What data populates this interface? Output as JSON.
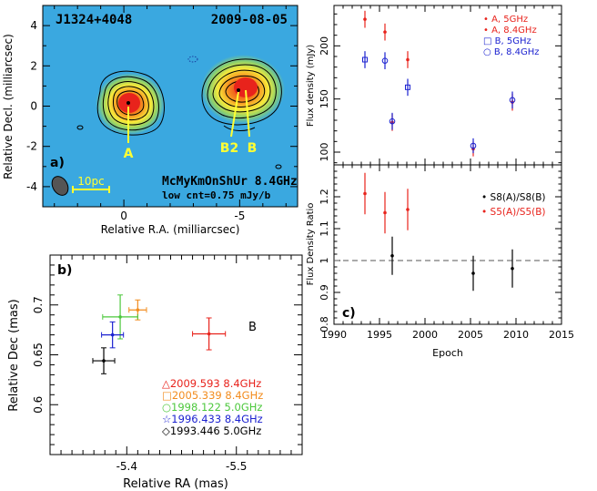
{
  "chart_data": [
    {
      "panel": "a)",
      "type": "heatmap",
      "source": "J1324+4048",
      "date": "2009-08-05",
      "xlabel": "Relative R.A. (milliarcsec)",
      "ylabel": "Relative Decl. (milliarcsec)",
      "xlim": [
        3.5,
        -7.5
      ],
      "ylim": [
        -5,
        5
      ],
      "xticks": [
        0,
        -5
      ],
      "yticks": [
        4,
        2,
        0,
        -2,
        -4
      ],
      "components": [
        {
          "label": "A",
          "x": 0.0,
          "y": 0.0
        },
        {
          "label": "B2",
          "x": -4.6,
          "y": 0.4
        },
        {
          "label": "B",
          "x": -5.4,
          "y": 0.7
        }
      ],
      "scalebar": "10pc",
      "caption": "McMyKmOnShUr 8.4GHz",
      "contour_note": "low cnt=0.75 mJy/b",
      "colors": {
        "background": "#3aa8e0",
        "core": "#e8231c",
        "outer": "#f7e93a"
      }
    },
    {
      "panel": "b)",
      "type": "scatter",
      "xlabel": "Relative RA (mas)",
      "ylabel": "Relative Dec (mas)",
      "xlim": [
        -5.33,
        -5.56
      ],
      "ylim": [
        0.55,
        0.75
      ],
      "xticks": [
        -5.4,
        -5.5
      ],
      "yticks": [
        0.6,
        0.65,
        0.7
      ],
      "component_label": "B",
      "series": [
        {
          "name": "2009.593 8.4GHz",
          "marker": "triangle",
          "color": "#e8231c",
          "x": -5.475,
          "y": 0.671,
          "xerr": 0.015,
          "yerr": 0.016
        },
        {
          "name": "2005.339 8.4GHz",
          "marker": "square",
          "color": "#f28c1e",
          "x": -5.41,
          "y": 0.695,
          "xerr": 0.008,
          "yerr": 0.01
        },
        {
          "name": "1998.122 5.0GHz",
          "marker": "circle",
          "color": "#4cc83c",
          "x": -5.394,
          "y": 0.688,
          "xerr": 0.016,
          "yerr": 0.022
        },
        {
          "name": "1996.433 8.4GHz",
          "marker": "star",
          "color": "#1c22d0",
          "x": -5.387,
          "y": 0.67,
          "xerr": 0.01,
          "yerr": 0.013
        },
        {
          "name": "1993.446 5.0GHz",
          "marker": "diamond",
          "color": "#000000",
          "x": -5.379,
          "y": 0.644,
          "xerr": 0.01,
          "yerr": 0.013
        }
      ]
    },
    {
      "panel": "c)",
      "type": "scatter",
      "top": {
        "ylabel": "Flux density (mJy)",
        "ylim": [
          88,
          238
        ],
        "yticks": [
          100,
          150,
          200
        ],
        "legend": [
          "A, 5GHz",
          "A, 8.4GHz",
          "B, 5GHz",
          "B, 8.4GHz"
        ],
        "series": [
          {
            "name": "A, 5GHz",
            "color": "#e8231c",
            "marker": "dot",
            "points": [
              {
                "x": 1993.4,
                "y": 225,
                "err": 8
              },
              {
                "x": 1998.1,
                "y": 187,
                "err": 8
              }
            ]
          },
          {
            "name": "A, 8.4GHz",
            "color": "#e8231c",
            "marker": "dot",
            "points": [
              {
                "x": 1995.6,
                "y": 213,
                "err": 8
              },
              {
                "x": 1996.4,
                "y": 128,
                "err": 8
              },
              {
                "x": 2005.3,
                "y": 103,
                "err": 7
              },
              {
                "x": 2009.6,
                "y": 147,
                "err": 8
              }
            ]
          },
          {
            "name": "B, 5GHz",
            "color": "#1c22d0",
            "marker": "square",
            "points": [
              {
                "x": 1993.4,
                "y": 187,
                "err": 8
              },
              {
                "x": 1998.1,
                "y": 161,
                "err": 8
              }
            ]
          },
          {
            "name": "B, 8.4GHz",
            "color": "#1c22d0",
            "marker": "circle",
            "points": [
              {
                "x": 1995.6,
                "y": 186,
                "err": 8
              },
              {
                "x": 1996.4,
                "y": 129,
                "err": 8
              },
              {
                "x": 2005.3,
                "y": 106,
                "err": 7
              },
              {
                "x": 2009.6,
                "y": 149,
                "err": 8
              }
            ]
          }
        ]
      },
      "bottom": {
        "ylabel": "Flux Density Ratio",
        "xlabel": "Epoch",
        "xlim": [
          1990,
          2015
        ],
        "ylim": [
          0.8,
          1.3
        ],
        "xticks": [
          1990,
          1995,
          2000,
          2005,
          2010,
          2015
        ],
        "yticks": [
          0.8,
          0.9,
          1.0,
          1.1,
          1.2
        ],
        "reference_line": 1.0,
        "series": [
          {
            "name": "S8(A)/S8(B)",
            "color": "#000000",
            "points": [
              {
                "x": 1996.4,
                "y": 1.015,
                "err": 0.06
              },
              {
                "x": 2005.3,
                "y": 0.96,
                "err": 0.055
              },
              {
                "x": 2009.6,
                "y": 0.975,
                "err": 0.06
              }
            ]
          },
          {
            "name": "S5(A)/S5(B)",
            "color": "#e8231c",
            "points": [
              {
                "x": 1993.4,
                "y": 1.21,
                "err": 0.065
              },
              {
                "x": 1995.6,
                "y": 1.15,
                "err": 0.065
              },
              {
                "x": 1998.1,
                "y": 1.16,
                "err": 0.065
              }
            ]
          }
        ]
      }
    }
  ]
}
